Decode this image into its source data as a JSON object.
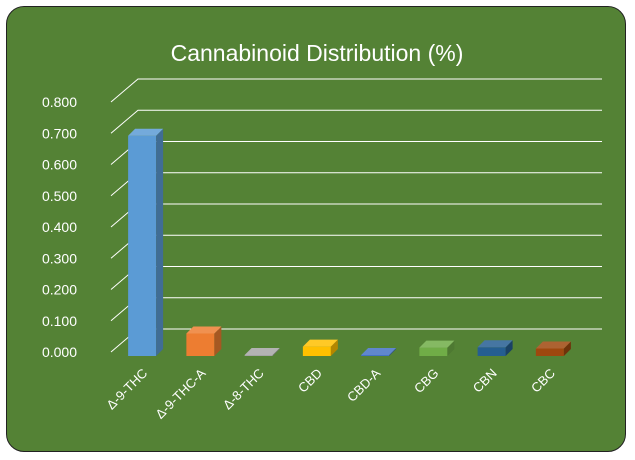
{
  "chart_data": {
    "type": "bar",
    "title": "Cannabinoid Distribution (%)",
    "xlabel": "",
    "ylabel": "",
    "categories": [
      "Δ-9-THC",
      "Δ-9-THC-A",
      "Δ-8-THC",
      "CBD",
      "CBD-A",
      "CBG",
      "CBN",
      "CBC"
    ],
    "values": [
      0.705,
      0.072,
      0.003,
      0.03,
      0.003,
      0.027,
      0.028,
      0.024
    ],
    "ylim": [
      0,
      0.8
    ],
    "yticks": [
      "0.000",
      "0.100",
      "0.200",
      "0.300",
      "0.400",
      "0.500",
      "0.600",
      "0.700",
      "0.800"
    ],
    "grid": true,
    "legend": "none",
    "style": "3d-column"
  },
  "colors": {
    "background": "#548235",
    "bars": [
      "#5B9BD5",
      "#ED7D31",
      "#A5A5A5",
      "#FFC000",
      "#4472C4",
      "#70AD47",
      "#255E91",
      "#9E480E"
    ],
    "grid": "#FFFFFF",
    "text": "#FFFFFF"
  }
}
